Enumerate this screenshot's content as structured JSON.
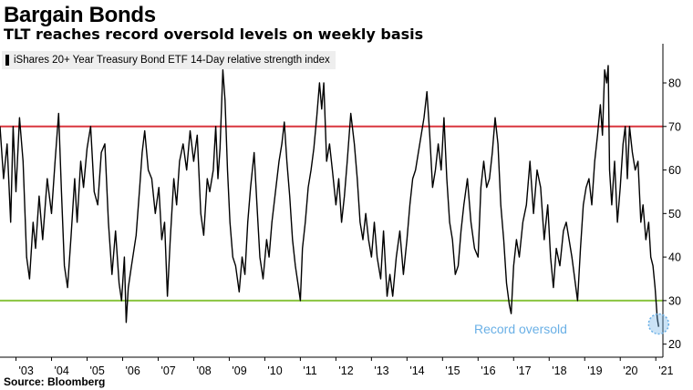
{
  "title": "Bargain Bonds",
  "subtitle": "TLT reaches record oversold levels on weekly basis",
  "source": "Source: Bloomberg",
  "chart_data": {
    "type": "line",
    "legend_position": "top-left",
    "grid": false,
    "ylim": [
      17,
      89
    ],
    "xlim": [
      2002.55,
      2021.2
    ],
    "y_ticks": [
      20,
      30,
      40,
      50,
      60,
      70,
      80
    ],
    "y_tick_labels": [
      "20",
      "30",
      "40",
      "50",
      "60",
      "70",
      "80"
    ],
    "x_ticks": [
      2003,
      2004,
      2005,
      2006,
      2007,
      2008,
      2009,
      2010,
      2011,
      2012,
      2013,
      2014,
      2015,
      2016,
      2017,
      2018,
      2019,
      2020,
      2021
    ],
    "x_tick_labels": [
      "'03",
      "'04",
      "'05",
      "'06",
      "'07",
      "'08",
      "'09",
      "'10",
      "'11",
      "'12",
      "'13",
      "'14",
      "'15",
      "'16",
      "'17",
      "'18",
      "'19",
      "'20",
      "'21"
    ],
    "reference_lines": [
      {
        "y": 70,
        "color": "#d9363e"
      },
      {
        "y": 30,
        "color": "#8ac43f"
      }
    ],
    "annotation": {
      "text": "Record oversold",
      "x": 2020.9,
      "y": 23.5,
      "color": "#6ab0e6"
    },
    "series": [
      {
        "name": "iShares 20+ Year Treasury Bond ETF 14-Day relative strength index",
        "color": "#000000",
        "points": [
          [
            2002.55,
            70
          ],
          [
            2002.65,
            58
          ],
          [
            2002.75,
            66
          ],
          [
            2002.85,
            48
          ],
          [
            2002.92,
            70
          ],
          [
            2003.0,
            55
          ],
          [
            2003.1,
            72
          ],
          [
            2003.2,
            62
          ],
          [
            2003.3,
            40
          ],
          [
            2003.38,
            35
          ],
          [
            2003.48,
            48
          ],
          [
            2003.55,
            42
          ],
          [
            2003.65,
            54
          ],
          [
            2003.75,
            44
          ],
          [
            2003.88,
            58
          ],
          [
            2004.0,
            50
          ],
          [
            2004.1,
            62
          ],
          [
            2004.2,
            73
          ],
          [
            2004.28,
            55
          ],
          [
            2004.36,
            38
          ],
          [
            2004.45,
            33
          ],
          [
            2004.55,
            45
          ],
          [
            2004.65,
            58
          ],
          [
            2004.72,
            48
          ],
          [
            2004.82,
            62
          ],
          [
            2004.9,
            56
          ],
          [
            2005.0,
            65
          ],
          [
            2005.1,
            70
          ],
          [
            2005.2,
            55
          ],
          [
            2005.3,
            52
          ],
          [
            2005.4,
            64
          ],
          [
            2005.5,
            66
          ],
          [
            2005.6,
            48
          ],
          [
            2005.7,
            36
          ],
          [
            2005.8,
            46
          ],
          [
            2005.9,
            34
          ],
          [
            2005.97,
            30
          ],
          [
            2006.05,
            40
          ],
          [
            2006.1,
            25
          ],
          [
            2006.16,
            33
          ],
          [
            2006.25,
            38
          ],
          [
            2006.38,
            45
          ],
          [
            2006.48,
            56
          ],
          [
            2006.55,
            64
          ],
          [
            2006.62,
            69
          ],
          [
            2006.72,
            60
          ],
          [
            2006.82,
            58
          ],
          [
            2006.92,
            50
          ],
          [
            2007.02,
            56
          ],
          [
            2007.1,
            44
          ],
          [
            2007.18,
            48
          ],
          [
            2007.26,
            31
          ],
          [
            2007.34,
            44
          ],
          [
            2007.44,
            58
          ],
          [
            2007.52,
            52
          ],
          [
            2007.6,
            62
          ],
          [
            2007.7,
            66
          ],
          [
            2007.8,
            60
          ],
          [
            2007.9,
            69
          ],
          [
            2008.0,
            62
          ],
          [
            2008.1,
            68
          ],
          [
            2008.2,
            50
          ],
          [
            2008.28,
            45
          ],
          [
            2008.38,
            58
          ],
          [
            2008.45,
            55
          ],
          [
            2008.55,
            60
          ],
          [
            2008.62,
            70
          ],
          [
            2008.68,
            58
          ],
          [
            2008.74,
            65
          ],
          [
            2008.82,
            83
          ],
          [
            2008.88,
            76
          ],
          [
            2008.95,
            60
          ],
          [
            2009.02,
            48
          ],
          [
            2009.1,
            40
          ],
          [
            2009.18,
            38
          ],
          [
            2009.28,
            32
          ],
          [
            2009.36,
            40
          ],
          [
            2009.44,
            36
          ],
          [
            2009.52,
            48
          ],
          [
            2009.6,
            56
          ],
          [
            2009.7,
            64
          ],
          [
            2009.78,
            52
          ],
          [
            2009.86,
            40
          ],
          [
            2009.95,
            35
          ],
          [
            2010.05,
            44
          ],
          [
            2010.12,
            40
          ],
          [
            2010.2,
            48
          ],
          [
            2010.3,
            55
          ],
          [
            2010.4,
            62
          ],
          [
            2010.48,
            66
          ],
          [
            2010.55,
            71
          ],
          [
            2010.62,
            62
          ],
          [
            2010.7,
            54
          ],
          [
            2010.78,
            44
          ],
          [
            2010.86,
            38
          ],
          [
            2010.95,
            33
          ],
          [
            2011.0,
            30
          ],
          [
            2011.06,
            42
          ],
          [
            2011.14,
            48
          ],
          [
            2011.22,
            56
          ],
          [
            2011.3,
            60
          ],
          [
            2011.38,
            65
          ],
          [
            2011.46,
            72
          ],
          [
            2011.54,
            80
          ],
          [
            2011.6,
            74
          ],
          [
            2011.66,
            80
          ],
          [
            2011.74,
            62
          ],
          [
            2011.82,
            66
          ],
          [
            2011.9,
            60
          ],
          [
            2012.0,
            52
          ],
          [
            2012.08,
            58
          ],
          [
            2012.16,
            48
          ],
          [
            2012.24,
            54
          ],
          [
            2012.32,
            62
          ],
          [
            2012.42,
            73
          ],
          [
            2012.52,
            66
          ],
          [
            2012.6,
            58
          ],
          [
            2012.68,
            48
          ],
          [
            2012.76,
            44
          ],
          [
            2012.84,
            50
          ],
          [
            2012.92,
            44
          ],
          [
            2013.0,
            40
          ],
          [
            2013.08,
            48
          ],
          [
            2013.16,
            40
          ],
          [
            2013.26,
            35
          ],
          [
            2013.34,
            46
          ],
          [
            2013.44,
            31
          ],
          [
            2013.52,
            36
          ],
          [
            2013.6,
            31
          ],
          [
            2013.7,
            40
          ],
          [
            2013.8,
            46
          ],
          [
            2013.9,
            36
          ],
          [
            2014.0,
            44
          ],
          [
            2014.08,
            52
          ],
          [
            2014.16,
            58
          ],
          [
            2014.24,
            60
          ],
          [
            2014.32,
            64
          ],
          [
            2014.4,
            68
          ],
          [
            2014.48,
            72
          ],
          [
            2014.56,
            78
          ],
          [
            2014.64,
            68
          ],
          [
            2014.72,
            56
          ],
          [
            2014.8,
            60
          ],
          [
            2014.88,
            66
          ],
          [
            2014.96,
            60
          ],
          [
            2015.04,
            72
          ],
          [
            2015.12,
            58
          ],
          [
            2015.2,
            48
          ],
          [
            2015.28,
            44
          ],
          [
            2015.36,
            36
          ],
          [
            2015.44,
            38
          ],
          [
            2015.52,
            46
          ],
          [
            2015.6,
            52
          ],
          [
            2015.7,
            58
          ],
          [
            2015.8,
            48
          ],
          [
            2015.9,
            42
          ],
          [
            2016.0,
            40
          ],
          [
            2016.08,
            56
          ],
          [
            2016.16,
            62
          ],
          [
            2016.24,
            56
          ],
          [
            2016.32,
            58
          ],
          [
            2016.4,
            64
          ],
          [
            2016.48,
            72
          ],
          [
            2016.56,
            66
          ],
          [
            2016.64,
            52
          ],
          [
            2016.72,
            44
          ],
          [
            2016.8,
            34
          ],
          [
            2016.88,
            29
          ],
          [
            2016.93,
            27
          ],
          [
            2017.0,
            38
          ],
          [
            2017.08,
            44
          ],
          [
            2017.16,
            40
          ],
          [
            2017.26,
            48
          ],
          [
            2017.36,
            52
          ],
          [
            2017.46,
            62
          ],
          [
            2017.56,
            50
          ],
          [
            2017.66,
            60
          ],
          [
            2017.76,
            56
          ],
          [
            2017.86,
            44
          ],
          [
            2017.96,
            52
          ],
          [
            2018.04,
            40
          ],
          [
            2018.12,
            33
          ],
          [
            2018.2,
            42
          ],
          [
            2018.3,
            38
          ],
          [
            2018.4,
            46
          ],
          [
            2018.48,
            48
          ],
          [
            2018.56,
            44
          ],
          [
            2018.64,
            40
          ],
          [
            2018.72,
            35
          ],
          [
            2018.8,
            30
          ],
          [
            2018.88,
            42
          ],
          [
            2018.96,
            52
          ],
          [
            2019.04,
            56
          ],
          [
            2019.12,
            58
          ],
          [
            2019.2,
            52
          ],
          [
            2019.28,
            62
          ],
          [
            2019.36,
            68
          ],
          [
            2019.44,
            75
          ],
          [
            2019.5,
            68
          ],
          [
            2019.56,
            83
          ],
          [
            2019.62,
            80
          ],
          [
            2019.66,
            84
          ],
          [
            2019.7,
            60
          ],
          [
            2019.76,
            52
          ],
          [
            2019.84,
            62
          ],
          [
            2019.92,
            48
          ],
          [
            2020.0,
            56
          ],
          [
            2020.08,
            66
          ],
          [
            2020.14,
            70
          ],
          [
            2020.2,
            58
          ],
          [
            2020.26,
            70
          ],
          [
            2020.34,
            64
          ],
          [
            2020.42,
            60
          ],
          [
            2020.5,
            62
          ],
          [
            2020.58,
            48
          ],
          [
            2020.64,
            52
          ],
          [
            2020.72,
            44
          ],
          [
            2020.8,
            48
          ],
          [
            2020.86,
            40
          ],
          [
            2020.92,
            38
          ],
          [
            2020.98,
            33
          ],
          [
            2021.04,
            26
          ],
          [
            2021.08,
            24
          ]
        ]
      }
    ]
  }
}
